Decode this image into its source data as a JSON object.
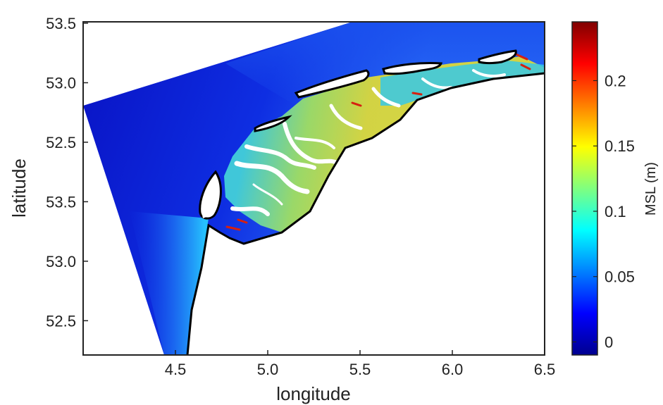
{
  "chart_data": {
    "type": "heatmap",
    "xlabel": "longitude",
    "ylabel": "latitude",
    "xlim": [
      4.0,
      6.5
    ],
    "x_ticks": [
      {
        "value": 4.5,
        "label": "4.5"
      },
      {
        "value": 5.0,
        "label": "5.0"
      },
      {
        "value": 5.5,
        "label": "5.5"
      },
      {
        "value": 6.0,
        "label": "6.0"
      },
      {
        "value": 6.5,
        "label": "6.5"
      }
    ],
    "y_ticks": [
      {
        "label": "53.5"
      },
      {
        "label": "53.0"
      },
      {
        "label": "52.5"
      },
      {
        "label": "53.5"
      },
      {
        "label": "53.0"
      },
      {
        "label": "52.5"
      }
    ],
    "colorbar": {
      "label": "MSL (m)",
      "range": [
        -0.01,
        0.245
      ],
      "colormap": "jet",
      "ticks": [
        {
          "value": 0,
          "label": "0"
        },
        {
          "value": 0.05,
          "label": "0.05"
        },
        {
          "value": 0.1,
          "label": "0.1"
        },
        {
          "value": 0.15,
          "label": "0.15"
        },
        {
          "value": 0.2,
          "label": "0.2"
        }
      ]
    },
    "colors": {
      "sea_deep": "#0a1fd6",
      "sea_mid": "#1a55f0",
      "coast_cyan": "#22d8ff",
      "tidal_green": "#9fe84a",
      "tidal_yellow": "#e8e02a",
      "hot_red": "#d82010",
      "coastline": "#000000"
    }
  }
}
